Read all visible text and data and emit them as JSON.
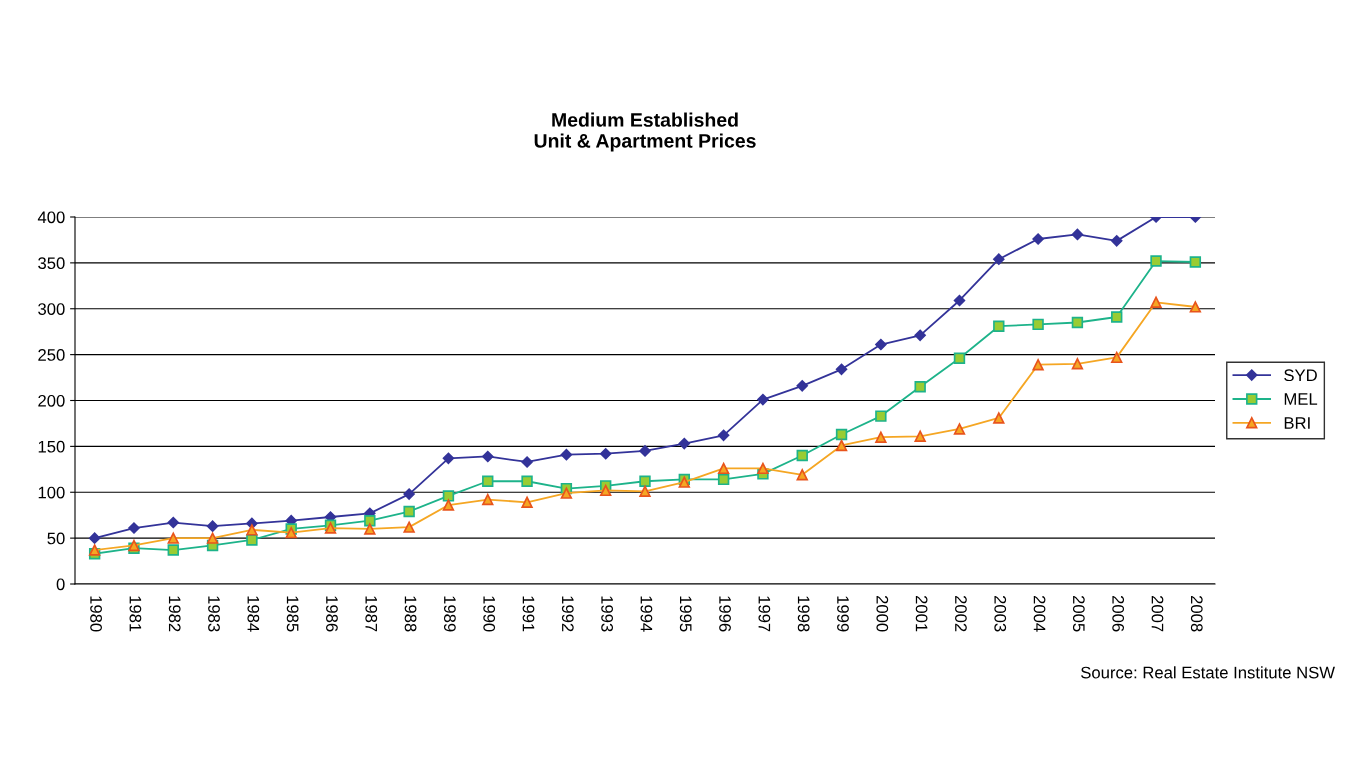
{
  "chart_data": {
    "type": "line",
    "title": "Medium Established\nUnit & Apartment Prices",
    "categories": [
      "1980",
      "1981",
      "1982",
      "1983",
      "1984",
      "1985",
      "1986",
      "1987",
      "1988",
      "1989",
      "1990",
      "1991",
      "1992",
      "1993",
      "1994",
      "1995",
      "1996",
      "1997",
      "1998",
      "1999",
      "2000",
      "2001",
      "2002",
      "2003",
      "2004",
      "2005",
      "2006",
      "2007",
      "2008"
    ],
    "series": [
      {
        "name": "SYD",
        "color": "#333399",
        "marker": "diamond",
        "values": [
          50,
          61,
          67,
          63,
          66,
          69,
          73,
          77,
          98,
          137,
          139,
          133,
          141,
          142,
          145,
          153,
          162,
          201,
          216,
          234,
          261,
          271,
          309,
          354,
          376,
          381,
          374,
          400,
          400
        ]
      },
      {
        "name": "MEL",
        "color": "#1db38a",
        "marker": "square",
        "values": [
          33,
          39,
          37,
          42,
          48,
          60,
          64,
          69,
          79,
          96,
          112,
          112,
          104,
          107,
          112,
          114,
          114,
          120,
          140,
          163,
          183,
          215,
          246,
          281,
          283,
          285,
          291,
          352,
          351
        ]
      },
      {
        "name": "BRI",
        "color": "#f5a623",
        "marker": "triangle",
        "values": [
          37,
          42,
          50,
          50,
          59,
          56,
          61,
          60,
          62,
          86,
          92,
          89,
          99,
          102,
          101,
          111,
          126,
          126,
          119,
          151,
          160,
          161,
          169,
          181,
          239,
          240,
          247,
          307,
          302
        ]
      }
    ],
    "ylim": [
      0,
      400
    ],
    "yticks": [
      0,
      50,
      100,
      150,
      200,
      250,
      300,
      350,
      400
    ],
    "grid": "y",
    "legend": "right",
    "line_style": "solid",
    "annotations": [
      "Source: Real Estate Institute NSW"
    ]
  }
}
